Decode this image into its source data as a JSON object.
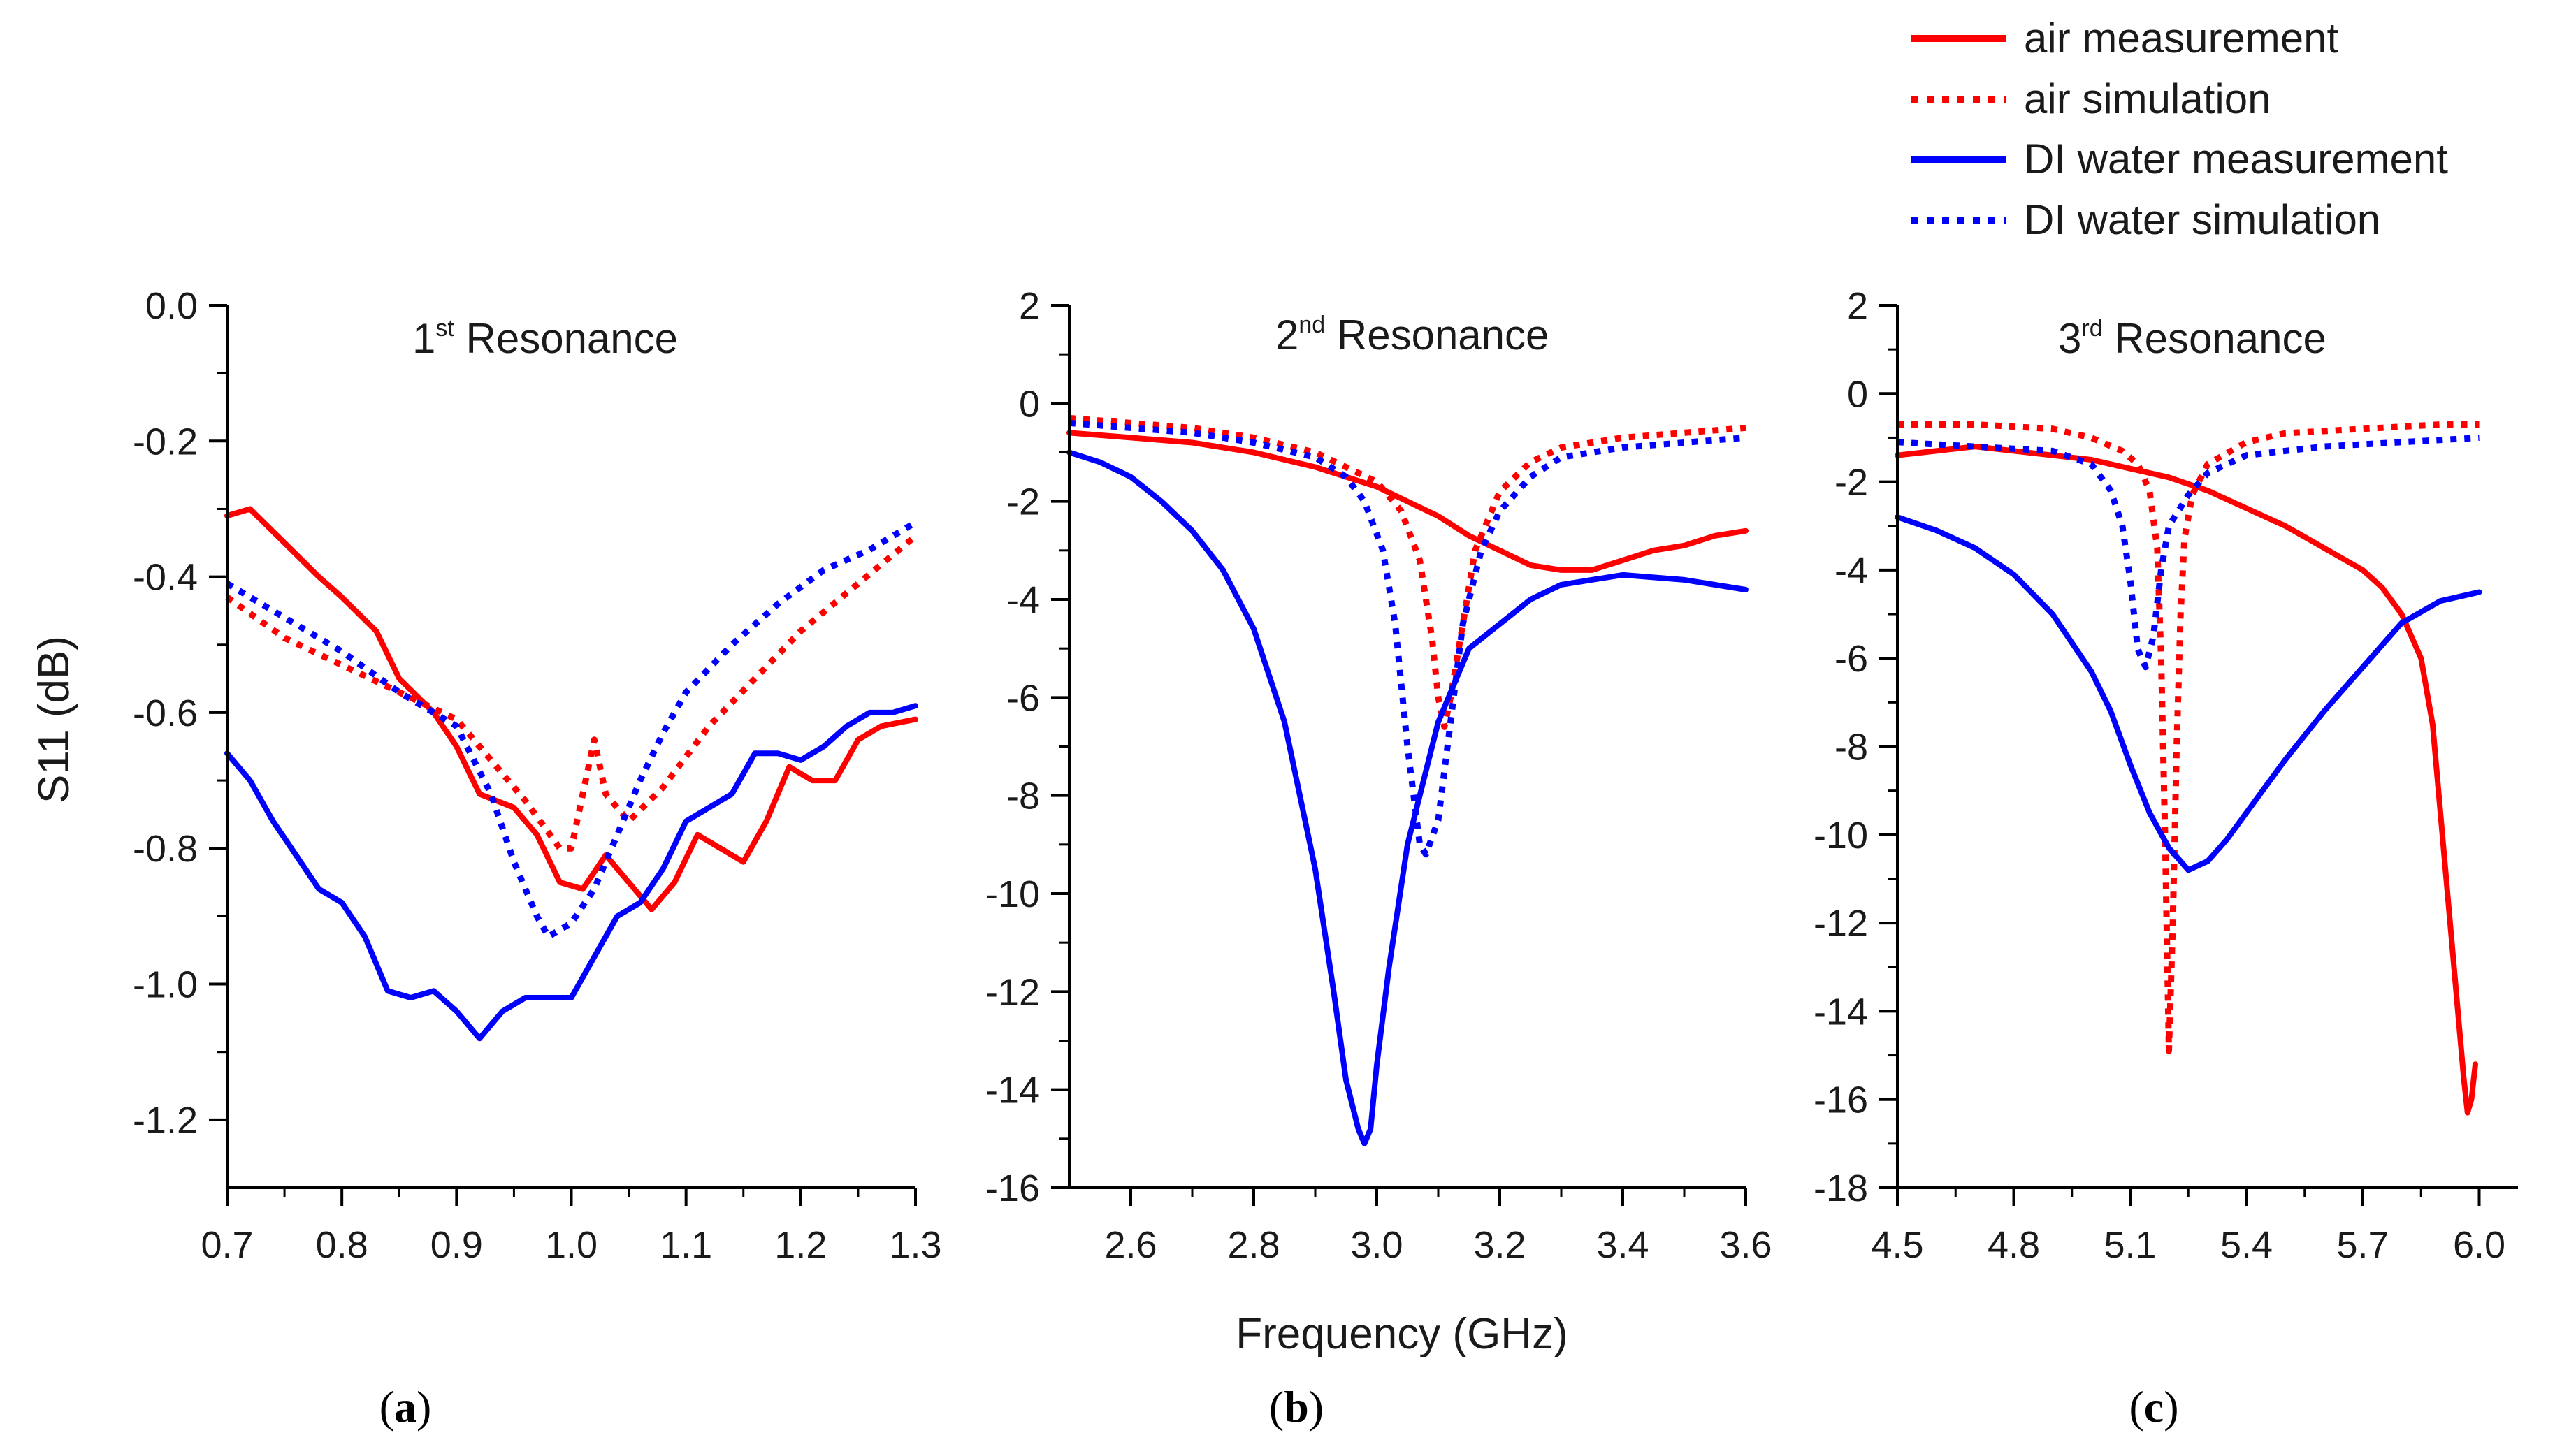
{
  "colors": {
    "air": "#ff0000",
    "water": "#0000ff",
    "axis": "#000000",
    "text": "#1a1a1a"
  },
  "legend": {
    "entries": [
      {
        "label": "air measurement",
        "series_key": "air_meas",
        "color": "#ff0000",
        "style": "solid"
      },
      {
        "label": "air simulation",
        "series_key": "air_sim",
        "color": "#ff0000",
        "style": "dotted"
      },
      {
        "label": "DI water measurement",
        "series_key": "water_meas",
        "color": "#0000ff",
        "style": "solid"
      },
      {
        "label": "DI water simulation",
        "series_key": "water_sim",
        "color": "#0000ff",
        "style": "dotted"
      }
    ]
  },
  "shared": {
    "xlabel": "Frequency (GHz)",
    "ylabel": "S11 (dB)"
  },
  "chart_data": [
    {
      "type": "line",
      "caption": {
        "open": "(",
        "letter": "a",
        "close": ")"
      },
      "title": {
        "prefix": "1",
        "sup": "st",
        "suffix": " Resonance"
      },
      "xlim": [
        0.7,
        1.3
      ],
      "ylim": [
        -1.3,
        0.0
      ],
      "x_ticks": [
        0.7,
        0.8,
        0.9,
        1.0,
        1.1,
        1.2,
        1.3
      ],
      "x_tick_labels": [
        "0.7",
        "0.8",
        "0.9",
        "1.0",
        "1.1",
        "1.2",
        "1.3"
      ],
      "y_ticks": [
        0.0,
        -0.2,
        -0.4,
        -0.6,
        -0.8,
        -1.0,
        -1.2
      ],
      "y_tick_labels": [
        "0.0",
        "-0.2",
        "-0.4",
        "-0.6",
        "-0.8",
        "-1.0",
        "-1.2"
      ],
      "series": [
        {
          "name": "air measurement",
          "key": "air_meas",
          "style": "solid",
          "color": "#ff0000",
          "x": [
            0.7,
            0.72,
            0.75,
            0.78,
            0.8,
            0.83,
            0.85,
            0.88,
            0.9,
            0.92,
            0.95,
            0.97,
            0.99,
            1.01,
            1.03,
            1.05,
            1.07,
            1.09,
            1.11,
            1.13,
            1.15,
            1.17,
            1.19,
            1.21,
            1.23,
            1.25,
            1.27,
            1.3
          ],
          "y": [
            -0.31,
            -0.3,
            -0.35,
            -0.4,
            -0.43,
            -0.48,
            -0.55,
            -0.6,
            -0.65,
            -0.72,
            -0.74,
            -0.78,
            -0.85,
            -0.86,
            -0.81,
            -0.85,
            -0.89,
            -0.85,
            -0.78,
            -0.8,
            -0.82,
            -0.76,
            -0.68,
            -0.7,
            -0.7,
            -0.64,
            -0.62,
            -0.61
          ]
        },
        {
          "name": "air simulation",
          "key": "air_sim",
          "style": "dotted",
          "color": "#ff0000",
          "x": [
            0.7,
            0.75,
            0.8,
            0.85,
            0.9,
            0.93,
            0.96,
            0.99,
            1.0,
            1.01,
            1.02,
            1.03,
            1.05,
            1.08,
            1.12,
            1.16,
            1.2,
            1.25,
            1.3
          ],
          "y": [
            -0.43,
            -0.49,
            -0.53,
            -0.57,
            -0.61,
            -0.67,
            -0.73,
            -0.8,
            -0.8,
            -0.72,
            -0.64,
            -0.72,
            -0.76,
            -0.71,
            -0.62,
            -0.55,
            -0.48,
            -0.41,
            -0.34
          ]
        },
        {
          "name": "DI water measurement",
          "key": "water_meas",
          "style": "solid",
          "color": "#0000ff",
          "x": [
            0.7,
            0.72,
            0.74,
            0.76,
            0.78,
            0.8,
            0.82,
            0.84,
            0.86,
            0.88,
            0.9,
            0.92,
            0.94,
            0.96,
            0.98,
            1.0,
            1.02,
            1.04,
            1.06,
            1.08,
            1.1,
            1.12,
            1.14,
            1.16,
            1.18,
            1.2,
            1.22,
            1.24,
            1.26,
            1.28,
            1.3
          ],
          "y": [
            -0.66,
            -0.7,
            -0.76,
            -0.81,
            -0.86,
            -0.88,
            -0.93,
            -1.01,
            -1.02,
            -1.01,
            -1.04,
            -1.08,
            -1.04,
            -1.02,
            -1.02,
            -1.02,
            -0.96,
            -0.9,
            -0.88,
            -0.83,
            -0.76,
            -0.74,
            -0.72,
            -0.66,
            -0.66,
            -0.67,
            -0.65,
            -0.62,
            -0.6,
            -0.6,
            -0.59
          ]
        },
        {
          "name": "DI water simulation",
          "key": "water_sim",
          "style": "dotted",
          "color": "#0000ff",
          "x": [
            0.7,
            0.75,
            0.8,
            0.85,
            0.9,
            0.93,
            0.95,
            0.97,
            0.98,
            1.0,
            1.02,
            1.04,
            1.06,
            1.08,
            1.1,
            1.14,
            1.18,
            1.22,
            1.26,
            1.3
          ],
          "y": [
            -0.41,
            -0.46,
            -0.51,
            -0.57,
            -0.62,
            -0.72,
            -0.82,
            -0.9,
            -0.93,
            -0.91,
            -0.86,
            -0.78,
            -0.7,
            -0.63,
            -0.57,
            -0.5,
            -0.44,
            -0.39,
            -0.36,
            -0.32
          ]
        }
      ]
    },
    {
      "type": "line",
      "caption": {
        "open": "(",
        "letter": "b",
        "close": ")"
      },
      "title": {
        "prefix": "2",
        "sup": "nd",
        "suffix": " Resonance"
      },
      "xlim": [
        2.5,
        3.6
      ],
      "ylim": [
        -16,
        2
      ],
      "x_ticks": [
        2.6,
        2.8,
        3.0,
        3.2,
        3.4,
        3.6
      ],
      "x_tick_labels": [
        "2.6",
        "2.8",
        "3.0",
        "3.2",
        "3.4",
        "3.6"
      ],
      "y_ticks": [
        2,
        0,
        -2,
        -4,
        -6,
        -8,
        -10,
        -12,
        -14,
        -16
      ],
      "y_tick_labels": [
        "2",
        "0",
        "-2",
        "-4",
        "-6",
        "-8",
        "-10",
        "-12",
        "-14",
        "-16"
      ],
      "series": [
        {
          "name": "air measurement",
          "key": "air_meas",
          "style": "solid",
          "color": "#ff0000",
          "x": [
            2.5,
            2.6,
            2.7,
            2.8,
            2.9,
            3.0,
            3.05,
            3.1,
            3.15,
            3.2,
            3.25,
            3.3,
            3.35,
            3.4,
            3.45,
            3.5,
            3.55,
            3.6
          ],
          "y": [
            -0.6,
            -0.7,
            -0.8,
            -1.0,
            -1.3,
            -1.7,
            -2.0,
            -2.3,
            -2.7,
            -3.0,
            -3.3,
            -3.4,
            -3.4,
            -3.2,
            -3.0,
            -2.9,
            -2.7,
            -2.6
          ]
        },
        {
          "name": "air simulation",
          "key": "air_sim",
          "style": "dotted",
          "color": "#ff0000",
          "x": [
            2.5,
            2.6,
            2.7,
            2.8,
            2.9,
            3.0,
            3.04,
            3.07,
            3.09,
            3.1,
            3.11,
            3.12,
            3.14,
            3.16,
            3.2,
            3.25,
            3.3,
            3.4,
            3.5,
            3.6
          ],
          "y": [
            -0.3,
            -0.4,
            -0.5,
            -0.7,
            -1.0,
            -1.6,
            -2.2,
            -3.2,
            -4.8,
            -6.0,
            -6.6,
            -6.0,
            -4.5,
            -3.0,
            -1.8,
            -1.2,
            -0.9,
            -0.7,
            -0.6,
            -0.5
          ]
        },
        {
          "name": "DI water measurement",
          "key": "water_meas",
          "style": "solid",
          "color": "#0000ff",
          "x": [
            2.5,
            2.55,
            2.6,
            2.65,
            2.7,
            2.75,
            2.8,
            2.85,
            2.9,
            2.93,
            2.95,
            2.97,
            2.98,
            2.99,
            3.0,
            3.02,
            3.05,
            3.1,
            3.15,
            3.2,
            3.25,
            3.3,
            3.4,
            3.5,
            3.6
          ],
          "y": [
            -1.0,
            -1.2,
            -1.5,
            -2.0,
            -2.6,
            -3.4,
            -4.6,
            -6.5,
            -9.5,
            -12.0,
            -13.8,
            -14.8,
            -15.1,
            -14.8,
            -13.5,
            -11.5,
            -9.0,
            -6.5,
            -5.0,
            -4.5,
            -4.0,
            -3.7,
            -3.5,
            -3.6,
            -3.8
          ]
        },
        {
          "name": "DI water simulation",
          "key": "water_sim",
          "style": "dotted",
          "color": "#0000ff",
          "x": [
            2.5,
            2.6,
            2.7,
            2.8,
            2.9,
            2.95,
            2.98,
            3.01,
            3.03,
            3.05,
            3.07,
            3.08,
            3.1,
            3.12,
            3.14,
            3.17,
            3.2,
            3.25,
            3.3,
            3.4,
            3.5,
            3.6
          ],
          "y": [
            -0.4,
            -0.5,
            -0.6,
            -0.8,
            -1.1,
            -1.5,
            -2.0,
            -3.0,
            -4.5,
            -7.0,
            -9.0,
            -9.2,
            -8.5,
            -6.5,
            -4.5,
            -3.0,
            -2.2,
            -1.5,
            -1.1,
            -0.9,
            -0.8,
            -0.7
          ]
        }
      ]
    },
    {
      "type": "line",
      "caption": {
        "open": "(",
        "letter": "c",
        "close": ")"
      },
      "title": {
        "prefix": "3",
        "sup": "rd",
        "suffix": " Resonance"
      },
      "xlim": [
        4.5,
        6.1
      ],
      "ylim": [
        -18,
        2
      ],
      "x_ticks": [
        4.5,
        4.8,
        5.1,
        5.4,
        5.7,
        6.0
      ],
      "x_tick_labels": [
        "4.5",
        "4.8",
        "5.1",
        "5.4",
        "5.7",
        "6.0"
      ],
      "y_ticks": [
        2,
        0,
        -2,
        -4,
        -6,
        -8,
        -10,
        -12,
        -14,
        -16,
        -18
      ],
      "y_tick_labels": [
        "2",
        "0",
        "-2",
        "-4",
        "-6",
        "-8",
        "-10",
        "-12",
        "-14",
        "-16",
        "-18"
      ],
      "series": [
        {
          "name": "air measurement",
          "key": "air_meas",
          "style": "solid",
          "color": "#ff0000",
          "x": [
            4.5,
            4.6,
            4.7,
            4.8,
            4.9,
            5.0,
            5.1,
            5.2,
            5.3,
            5.4,
            5.5,
            5.6,
            5.7,
            5.75,
            5.8,
            5.85,
            5.88,
            5.9,
            5.93,
            5.96,
            5.97,
            5.98,
            5.99
          ],
          "y": [
            -1.4,
            -1.3,
            -1.2,
            -1.3,
            -1.4,
            -1.5,
            -1.7,
            -1.9,
            -2.2,
            -2.6,
            -3.0,
            -3.5,
            -4.0,
            -4.4,
            -5.0,
            -6.0,
            -7.5,
            -9.5,
            -12.5,
            -15.5,
            -16.3,
            -16.0,
            -15.2
          ]
        },
        {
          "name": "air simulation",
          "key": "air_sim",
          "style": "dotted",
          "color": "#ff0000",
          "x": [
            4.5,
            4.7,
            4.9,
            5.0,
            5.08,
            5.12,
            5.15,
            5.17,
            5.18,
            5.19,
            5.2,
            5.21,
            5.22,
            5.23,
            5.24,
            5.26,
            5.3,
            5.4,
            5.5,
            5.7,
            5.9,
            6.0
          ],
          "y": [
            -0.7,
            -0.7,
            -0.8,
            -1.0,
            -1.3,
            -1.6,
            -2.2,
            -3.5,
            -6.0,
            -10.0,
            -14.9,
            -12.0,
            -8.0,
            -5.0,
            -3.3,
            -2.3,
            -1.6,
            -1.1,
            -0.9,
            -0.8,
            -0.7,
            -0.7
          ]
        },
        {
          "name": "DI water measurement",
          "key": "water_meas",
          "style": "solid",
          "color": "#0000ff",
          "x": [
            4.5,
            4.6,
            4.7,
            4.8,
            4.9,
            5.0,
            5.05,
            5.1,
            5.15,
            5.2,
            5.25,
            5.3,
            5.35,
            5.4,
            5.5,
            5.6,
            5.7,
            5.8,
            5.9,
            5.95,
            6.0
          ],
          "y": [
            -2.8,
            -3.1,
            -3.5,
            -4.1,
            -5.0,
            -6.3,
            -7.2,
            -8.4,
            -9.5,
            -10.3,
            -10.8,
            -10.6,
            -10.1,
            -9.5,
            -8.3,
            -7.2,
            -6.2,
            -5.2,
            -4.7,
            -4.6,
            -4.5
          ]
        },
        {
          "name": "DI water simulation",
          "key": "water_sim",
          "style": "dotted",
          "color": "#0000ff",
          "x": [
            4.5,
            4.7,
            4.9,
            5.0,
            5.05,
            5.08,
            5.1,
            5.12,
            5.14,
            5.16,
            5.18,
            5.2,
            5.25,
            5.3,
            5.4,
            5.6,
            5.8,
            6.0
          ],
          "y": [
            -1.1,
            -1.2,
            -1.3,
            -1.6,
            -2.2,
            -3.0,
            -4.2,
            -5.8,
            -6.2,
            -5.5,
            -4.0,
            -3.0,
            -2.3,
            -1.8,
            -1.4,
            -1.2,
            -1.1,
            -1.0
          ]
        }
      ]
    }
  ]
}
